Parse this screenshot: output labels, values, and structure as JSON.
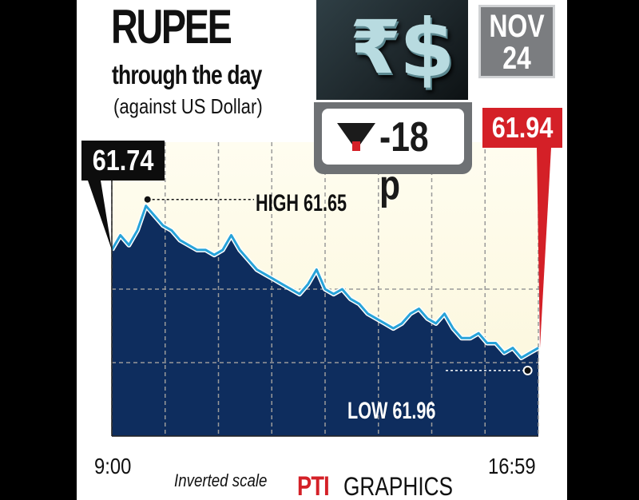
{
  "header": {
    "title": "RUPEE",
    "subtitle": "through the day",
    "context": "(against US Dollar)",
    "date_line1": "NOV",
    "date_line2": "24",
    "change": "-18 p",
    "icons": [
      "rupee-icon",
      "dollar-icon",
      "down-triangle-icon"
    ]
  },
  "chart_data": {
    "type": "area",
    "inverted_y": true,
    "ylim": [
      62.12,
      61.52
    ],
    "x_start_label": "9:00",
    "x_end_label": "16:59",
    "open_label": "61.74",
    "close_label": "61.94",
    "high_label": "HIGH 61.65",
    "low_label": "LOW 61.96",
    "note": "Inverted scale",
    "grid": true,
    "x": [
      0,
      2,
      4,
      6,
      8,
      10,
      12,
      14,
      16,
      18,
      20,
      22,
      24,
      26,
      28,
      30,
      32,
      34,
      36,
      38,
      40,
      42,
      44,
      46,
      48,
      50,
      52,
      54,
      56,
      58,
      60,
      62,
      64,
      66,
      68,
      70,
      72,
      74,
      76,
      78,
      80,
      82,
      84,
      86,
      88,
      90,
      92,
      94,
      96,
      98,
      100
    ],
    "values": [
      61.74,
      61.71,
      61.73,
      61.7,
      61.65,
      61.67,
      61.69,
      61.7,
      61.72,
      61.73,
      61.74,
      61.74,
      61.75,
      61.74,
      61.71,
      61.74,
      61.76,
      61.78,
      61.79,
      61.8,
      61.81,
      61.82,
      61.83,
      61.81,
      61.78,
      61.82,
      61.83,
      61.82,
      61.84,
      61.85,
      61.87,
      61.88,
      61.89,
      61.9,
      61.89,
      61.87,
      61.86,
      61.88,
      61.89,
      61.87,
      61.9,
      61.92,
      61.92,
      61.91,
      61.93,
      61.93,
      61.95,
      61.94,
      61.96,
      61.95,
      61.94
    ],
    "colors": {
      "area_top": "#fbf6d9",
      "area_bottom": "#0e2d5e",
      "line": "#27a3d9",
      "close": "#d42027",
      "open": "#0d0d0d"
    }
  },
  "footer": {
    "logo_mark": "PTI",
    "logo_text": "GRAPHICS"
  }
}
